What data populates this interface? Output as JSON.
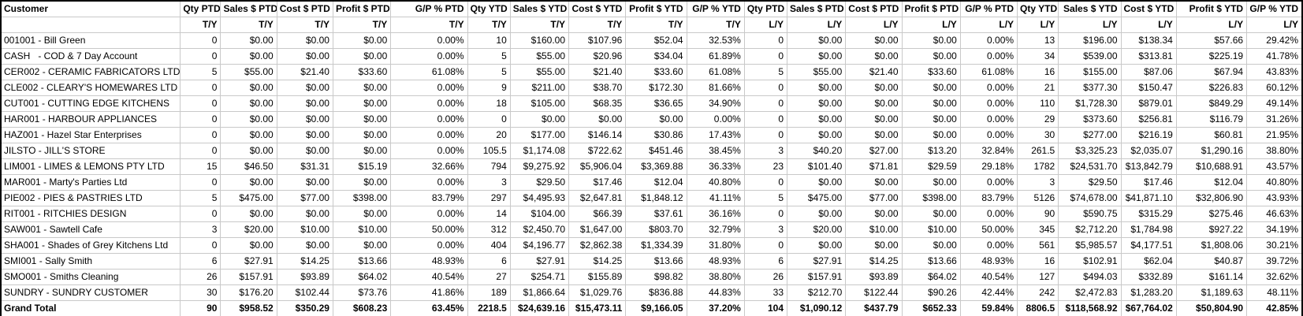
{
  "colors": {
    "background": "#ffffff",
    "text": "#000000",
    "gridline": "#c9c9c9",
    "outer_border": "#000000"
  },
  "table": {
    "customer_header": "Customer",
    "columns": [
      {
        "label": "Qty PTD",
        "period": "T/Y"
      },
      {
        "label": "Sales $ PTD",
        "period": "T/Y"
      },
      {
        "label": "Cost $ PTD",
        "period": "T/Y"
      },
      {
        "label": "Profit $ PTD",
        "period": "T/Y"
      },
      {
        "label": "G/P % PTD",
        "period": "T/Y"
      },
      {
        "label": "Qty YTD",
        "period": "T/Y"
      },
      {
        "label": "Sales $ YTD",
        "period": "T/Y"
      },
      {
        "label": "Cost $ YTD",
        "period": "T/Y"
      },
      {
        "label": "Profit $ YTD",
        "period": "T/Y"
      },
      {
        "label": "G/P % YTD",
        "period": "T/Y"
      },
      {
        "label": "Qty PTD",
        "period": "L/Y"
      },
      {
        "label": "Sales $ PTD",
        "period": "L/Y"
      },
      {
        "label": "Cost $ PTD",
        "period": "L/Y"
      },
      {
        "label": "Profit $ PTD",
        "period": "L/Y"
      },
      {
        "label": "G/P % PTD",
        "period": "L/Y"
      },
      {
        "label": "Qty YTD",
        "period": "L/Y"
      },
      {
        "label": "Sales $ YTD",
        "period": "L/Y"
      },
      {
        "label": "Cost $ YTD",
        "period": "L/Y"
      },
      {
        "label": "Profit $ YTD",
        "period": "L/Y"
      },
      {
        "label": "G/P % YTD",
        "period": "L/Y"
      }
    ],
    "rows": [
      {
        "customer": "001001 - Bill Green",
        "values": [
          "0",
          "$0.00",
          "$0.00",
          "$0.00",
          "0.00%",
          "10",
          "$160.00",
          "$107.96",
          "$52.04",
          "32.53%",
          "0",
          "$0.00",
          "$0.00",
          "$0.00",
          "0.00%",
          "13",
          "$196.00",
          "$138.34",
          "$57.66",
          "29.42%"
        ]
      },
      {
        "customer": "CASH   - COD & 7 Day Account",
        "values": [
          "0",
          "$0.00",
          "$0.00",
          "$0.00",
          "0.00%",
          "5",
          "$55.00",
          "$20.96",
          "$34.04",
          "61.89%",
          "0",
          "$0.00",
          "$0.00",
          "$0.00",
          "0.00%",
          "34",
          "$539.00",
          "$313.81",
          "$225.19",
          "41.78%"
        ]
      },
      {
        "customer": "CER002 - CERAMIC FABRICATORS LTD",
        "values": [
          "5",
          "$55.00",
          "$21.40",
          "$33.60",
          "61.08%",
          "5",
          "$55.00",
          "$21.40",
          "$33.60",
          "61.08%",
          "5",
          "$55.00",
          "$21.40",
          "$33.60",
          "61.08%",
          "16",
          "$155.00",
          "$87.06",
          "$67.94",
          "43.83%"
        ]
      },
      {
        "customer": "CLE002 - CLEARY'S HOMEWARES LTD",
        "values": [
          "0",
          "$0.00",
          "$0.00",
          "$0.00",
          "0.00%",
          "9",
          "$211.00",
          "$38.70",
          "$172.30",
          "81.66%",
          "0",
          "$0.00",
          "$0.00",
          "$0.00",
          "0.00%",
          "21",
          "$377.30",
          "$150.47",
          "$226.83",
          "60.12%"
        ]
      },
      {
        "customer": "CUT001 - CUTTING EDGE KITCHENS",
        "values": [
          "0",
          "$0.00",
          "$0.00",
          "$0.00",
          "0.00%",
          "18",
          "$105.00",
          "$68.35",
          "$36.65",
          "34.90%",
          "0",
          "$0.00",
          "$0.00",
          "$0.00",
          "0.00%",
          "110",
          "$1,728.30",
          "$879.01",
          "$849.29",
          "49.14%"
        ]
      },
      {
        "customer": "HAR001 - HARBOUR APPLIANCES",
        "values": [
          "0",
          "$0.00",
          "$0.00",
          "$0.00",
          "0.00%",
          "0",
          "$0.00",
          "$0.00",
          "$0.00",
          "0.00%",
          "0",
          "$0.00",
          "$0.00",
          "$0.00",
          "0.00%",
          "29",
          "$373.60",
          "$256.81",
          "$116.79",
          "31.26%"
        ]
      },
      {
        "customer": "HAZ001 - Hazel Star Enterprises",
        "values": [
          "0",
          "$0.00",
          "$0.00",
          "$0.00",
          "0.00%",
          "20",
          "$177.00",
          "$146.14",
          "$30.86",
          "17.43%",
          "0",
          "$0.00",
          "$0.00",
          "$0.00",
          "0.00%",
          "30",
          "$277.00",
          "$216.19",
          "$60.81",
          "21.95%"
        ]
      },
      {
        "customer": "JILSTO - JILL'S STORE",
        "values": [
          "0",
          "$0.00",
          "$0.00",
          "$0.00",
          "0.00%",
          "105.5",
          "$1,174.08",
          "$722.62",
          "$451.46",
          "38.45%",
          "3",
          "$40.20",
          "$27.00",
          "$13.20",
          "32.84%",
          "261.5",
          "$3,325.23",
          "$2,035.07",
          "$1,290.16",
          "38.80%"
        ]
      },
      {
        "customer": "LIM001 - LIMES & LEMONS PTY LTD",
        "values": [
          "15",
          "$46.50",
          "$31.31",
          "$15.19",
          "32.66%",
          "794",
          "$9,275.92",
          "$5,906.04",
          "$3,369.88",
          "36.33%",
          "23",
          "$101.40",
          "$71.81",
          "$29.59",
          "29.18%",
          "1782",
          "$24,531.70",
          "$13,842.79",
          "$10,688.91",
          "43.57%"
        ]
      },
      {
        "customer": "MAR001 - Marty's Parties Ltd",
        "values": [
          "0",
          "$0.00",
          "$0.00",
          "$0.00",
          "0.00%",
          "3",
          "$29.50",
          "$17.46",
          "$12.04",
          "40.80%",
          "0",
          "$0.00",
          "$0.00",
          "$0.00",
          "0.00%",
          "3",
          "$29.50",
          "$17.46",
          "$12.04",
          "40.80%"
        ]
      },
      {
        "customer": "PIE002 - PIES & PASTRIES LTD",
        "values": [
          "5",
          "$475.00",
          "$77.00",
          "$398.00",
          "83.79%",
          "297",
          "$4,495.93",
          "$2,647.81",
          "$1,848.12",
          "41.11%",
          "5",
          "$475.00",
          "$77.00",
          "$398.00",
          "83.79%",
          "5126",
          "$74,678.00",
          "$41,871.10",
          "$32,806.90",
          "43.93%"
        ]
      },
      {
        "customer": "RIT001 - RITCHIES DESIGN",
        "values": [
          "0",
          "$0.00",
          "$0.00",
          "$0.00",
          "0.00%",
          "14",
          "$104.00",
          "$66.39",
          "$37.61",
          "36.16%",
          "0",
          "$0.00",
          "$0.00",
          "$0.00",
          "0.00%",
          "90",
          "$590.75",
          "$315.29",
          "$275.46",
          "46.63%"
        ]
      },
      {
        "customer": "SAW001 - Sawtell Cafe",
        "values": [
          "3",
          "$20.00",
          "$10.00",
          "$10.00",
          "50.00%",
          "312",
          "$2,450.70",
          "$1,647.00",
          "$803.70",
          "32.79%",
          "3",
          "$20.00",
          "$10.00",
          "$10.00",
          "50.00%",
          "345",
          "$2,712.20",
          "$1,784.98",
          "$927.22",
          "34.19%"
        ]
      },
      {
        "customer": "SHA001 - Shades of Grey Kitchens Ltd",
        "values": [
          "0",
          "$0.00",
          "$0.00",
          "$0.00",
          "0.00%",
          "404",
          "$4,196.77",
          "$2,862.38",
          "$1,334.39",
          "31.80%",
          "0",
          "$0.00",
          "$0.00",
          "$0.00",
          "0.00%",
          "561",
          "$5,985.57",
          "$4,177.51",
          "$1,808.06",
          "30.21%"
        ]
      },
      {
        "customer": "SMI001 - Sally Smith",
        "values": [
          "6",
          "$27.91",
          "$14.25",
          "$13.66",
          "48.93%",
          "6",
          "$27.91",
          "$14.25",
          "$13.66",
          "48.93%",
          "6",
          "$27.91",
          "$14.25",
          "$13.66",
          "48.93%",
          "16",
          "$102.91",
          "$62.04",
          "$40.87",
          "39.72%"
        ]
      },
      {
        "customer": "SMO001 - Smiths Cleaning",
        "values": [
          "26",
          "$157.91",
          "$93.89",
          "$64.02",
          "40.54%",
          "27",
          "$254.71",
          "$155.89",
          "$98.82",
          "38.80%",
          "26",
          "$157.91",
          "$93.89",
          "$64.02",
          "40.54%",
          "127",
          "$494.03",
          "$332.89",
          "$161.14",
          "32.62%"
        ]
      },
      {
        "customer": "SUNDRY - SUNDRY CUSTOMER",
        "values": [
          "30",
          "$176.20",
          "$102.44",
          "$73.76",
          "41.86%",
          "189",
          "$1,866.64",
          "$1,029.76",
          "$836.88",
          "44.83%",
          "33",
          "$212.70",
          "$122.44",
          "$90.26",
          "42.44%",
          "242",
          "$2,472.83",
          "$1,283.20",
          "$1,189.63",
          "48.11%"
        ]
      }
    ],
    "grand_total": {
      "customer": "Grand Total",
      "values": [
        "90",
        "$958.52",
        "$350.29",
        "$608.23",
        "63.45%",
        "2218.5",
        "$24,639.16",
        "$15,473.11",
        "$9,166.05",
        "37.20%",
        "104",
        "$1,090.12",
        "$437.79",
        "$652.33",
        "59.84%",
        "8806.5",
        "$118,568.92",
        "$67,764.02",
        "$50,804.90",
        "42.85%"
      ]
    }
  }
}
